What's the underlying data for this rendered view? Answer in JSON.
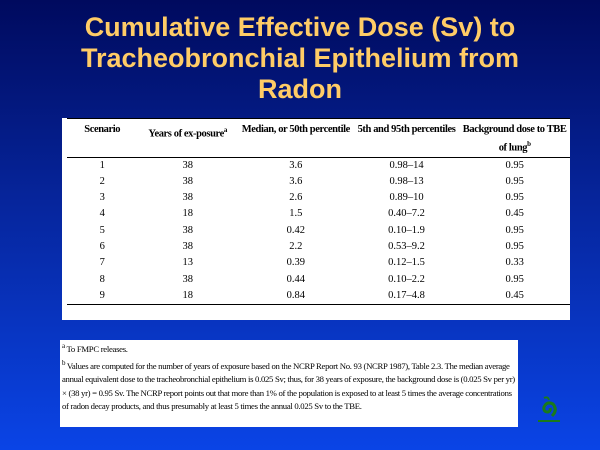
{
  "slide": {
    "title_line1": "Cumulative Effective Dose (Sv) to",
    "title_line2": "Tracheobronchial Epithelium from",
    "title_line3": "Radon"
  },
  "table": {
    "headers": [
      {
        "text": "Scenario",
        "sup": ""
      },
      {
        "text": "Years of ex-posure",
        "sup": "a"
      },
      {
        "text": "Median, or 50th percentile",
        "sup": ""
      },
      {
        "text": "5th and 95th percentiles",
        "sup": ""
      },
      {
        "text": "Background dose to TBE of lung",
        "sup": "b"
      }
    ],
    "rows": [
      [
        "1",
        "38",
        "3.6",
        "0.98–14",
        "0.95"
      ],
      [
        "2",
        "38",
        "3.6",
        "0.98–13",
        "0.95"
      ],
      [
        "3",
        "38",
        "2.6",
        "0.89–10",
        "0.95"
      ],
      [
        "4",
        "18",
        "1.5",
        "0.40–7.2",
        "0.45"
      ],
      [
        "5",
        "38",
        "0.42",
        "0.10–1.9",
        "0.95"
      ],
      [
        "6",
        "38",
        "2.2",
        "0.53–9.2",
        "0.95"
      ],
      [
        "7",
        "13",
        "0.39",
        "0.12–1.5",
        "0.33"
      ],
      [
        "8",
        "38",
        "0.44",
        "0.10–2.2",
        "0.95"
      ],
      [
        "9",
        "18",
        "0.84",
        "0.17–4.8",
        "0.45"
      ]
    ]
  },
  "footnotes": [
    {
      "mark": "a",
      "text": "To FMPC releases."
    },
    {
      "mark": "b",
      "text": "Values are computed for the number of years of exposure based on the NCRP Report No. 93 (NCRP 1987), Table 2.3. The median average annual equivalent dose to the tracheobronchial epithelium is 0.025 Sv; thus, for 38 years of exposure, the background dose is (0.025 Sv per yr) × (38 yr) = 0.95 Sv. The NCRP report points out that more than 1% of the population is exposed to at least 5 times the average concentrations of radon decay products, and thus presumably at least 5 times the annual 0.025 Sv to the TBE."
    }
  ],
  "colors": {
    "title": "#ffcc66",
    "logo": "#1a7a1a"
  },
  "logo_icon": "green-swirl-logo"
}
